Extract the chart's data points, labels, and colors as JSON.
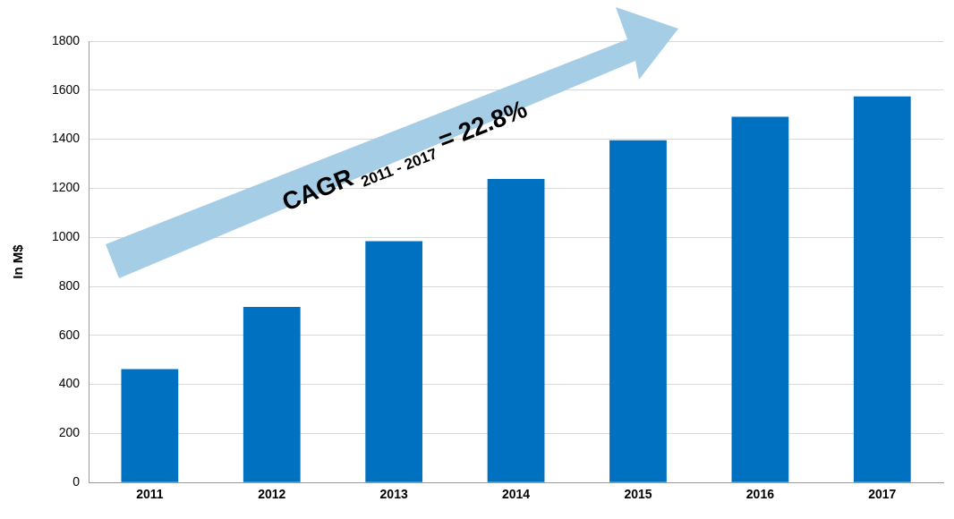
{
  "chart_data": {
    "type": "bar",
    "ylabel": "In M$",
    "categories": [
      "2011",
      "2012",
      "2013",
      "2014",
      "2015",
      "2016",
      "2017"
    ],
    "values": [
      462,
      716,
      984,
      1238,
      1396,
      1492,
      1575
    ],
    "color": "#0070c0",
    "ylim": [
      0,
      1800
    ],
    "yticks": [
      0,
      200,
      400,
      600,
      800,
      1000,
      1200,
      1400,
      1600,
      1800
    ],
    "grid": "y",
    "legend": false,
    "annotations": [
      "CAGR $_{2011 - 2017}$ = 22.8%"
    ]
  }
}
